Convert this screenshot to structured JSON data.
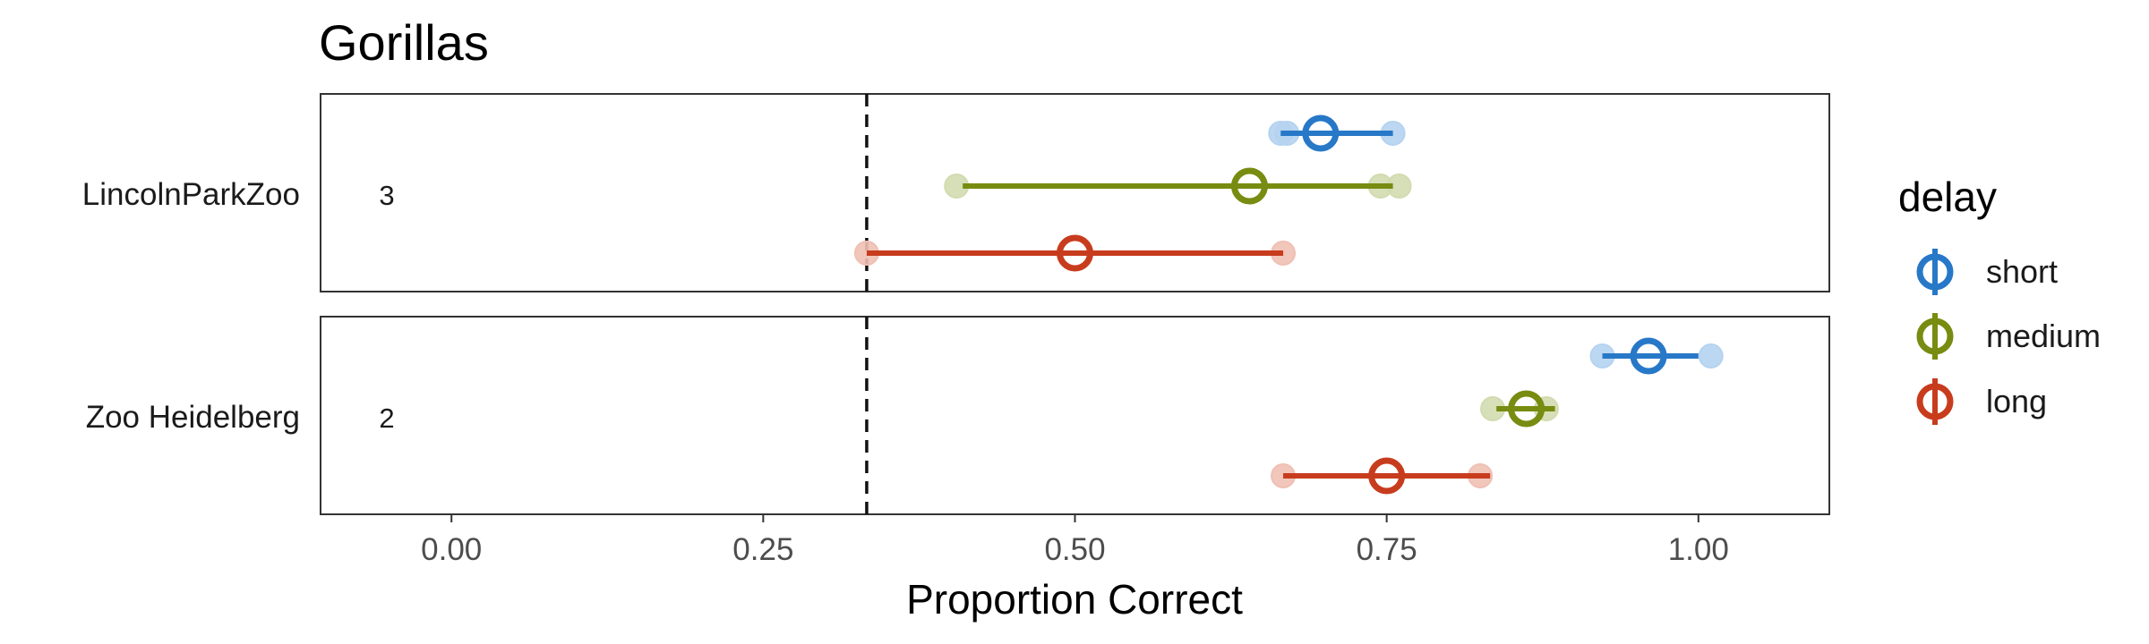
{
  "chart_data": {
    "type": "scatter",
    "title": "Gorillas",
    "xlabel": "Proportion Correct",
    "xlim": [
      -0.105,
      1.105
    ],
    "x_ticks": [
      0.0,
      0.25,
      0.5,
      0.75,
      1.0
    ],
    "x_tick_labels": [
      "0.00",
      "0.25",
      "0.50",
      "0.75",
      "1.00"
    ],
    "reference_line": {
      "x": 0.333,
      "style": "dashed"
    },
    "legend_title": "delay",
    "legend_position": "right",
    "series": [
      {
        "name": "short",
        "color": "#2878c8",
        "light_color": "#b5d3f0"
      },
      {
        "name": "medium",
        "color": "#778c10",
        "light_color": "#d2dbb0"
      },
      {
        "name": "long",
        "color": "#c83c1e",
        "light_color": "#efc0b4"
      }
    ],
    "panels": [
      {
        "label": "LincolnParkZoo",
        "count": "3",
        "rows": [
          {
            "series": "short",
            "individual": [
              0.665,
              0.67,
              0.755
            ],
            "mean": 0.697,
            "range": [
              0.665,
              0.755
            ]
          },
          {
            "series": "medium",
            "individual": [
              0.405,
              0.745,
              0.76
            ],
            "mean": 0.64,
            "range": [
              0.41,
              0.755
            ]
          },
          {
            "series": "long",
            "individual": [
              0.333,
              0.667
            ],
            "mean": 0.5,
            "range": [
              0.333,
              0.667
            ]
          }
        ]
      },
      {
        "label": "Zoo Heidelberg",
        "count": "2",
        "rows": [
          {
            "series": "short",
            "individual": [
              0.923,
              1.01
            ],
            "mean": 0.96,
            "range": [
              0.923,
              1.0
            ]
          },
          {
            "series": "medium",
            "individual": [
              0.835,
              0.878
            ],
            "mean": 0.862,
            "range": [
              0.838,
              0.885
            ]
          },
          {
            "series": "long",
            "individual": [
              0.667,
              0.825
            ],
            "mean": 0.75,
            "range": [
              0.667,
              0.833
            ]
          }
        ]
      }
    ]
  }
}
